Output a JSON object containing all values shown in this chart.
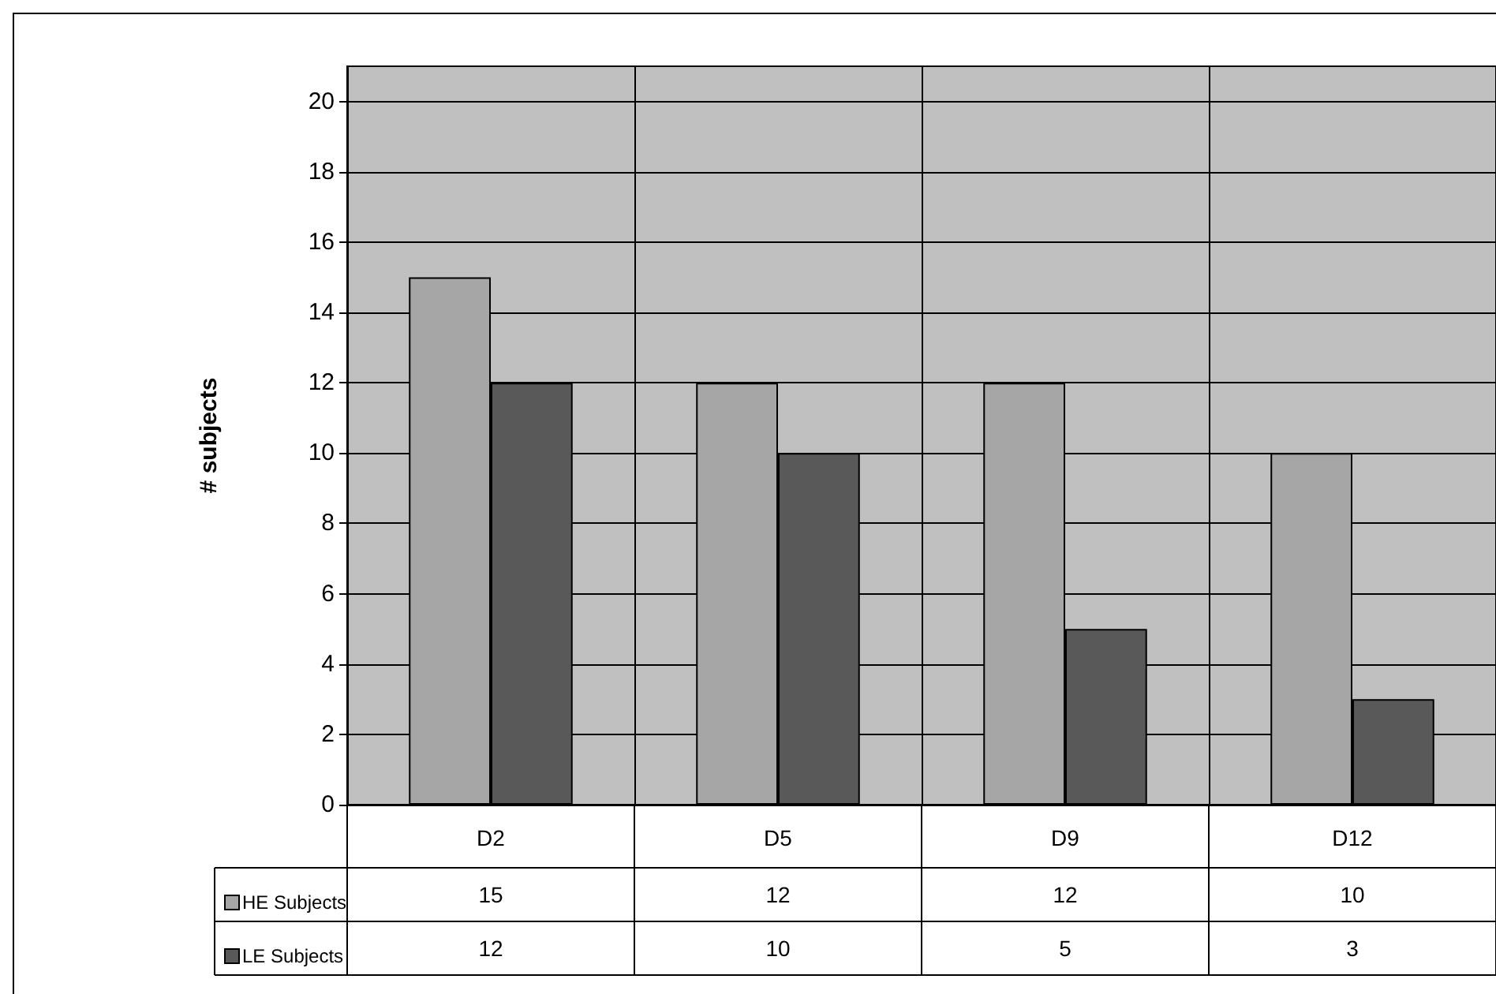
{
  "chart_data": {
    "type": "bar",
    "ylabel": "# subjects",
    "categories": [
      "D2",
      "D5",
      "D9",
      "D12"
    ],
    "series": [
      {
        "name": "HE Subjects",
        "color": "#a6a6a6",
        "values": [
          15,
          12,
          12,
          10
        ]
      },
      {
        "name": "LE Subjects",
        "color": "#595959",
        "values": [
          12,
          10,
          5,
          3
        ]
      }
    ],
    "ylim": [
      0,
      21
    ],
    "yticks": [
      0,
      2,
      4,
      6,
      8,
      10,
      12,
      14,
      16,
      18,
      20
    ],
    "grid": true,
    "legend": "bottom left",
    "data_labels": true
  }
}
